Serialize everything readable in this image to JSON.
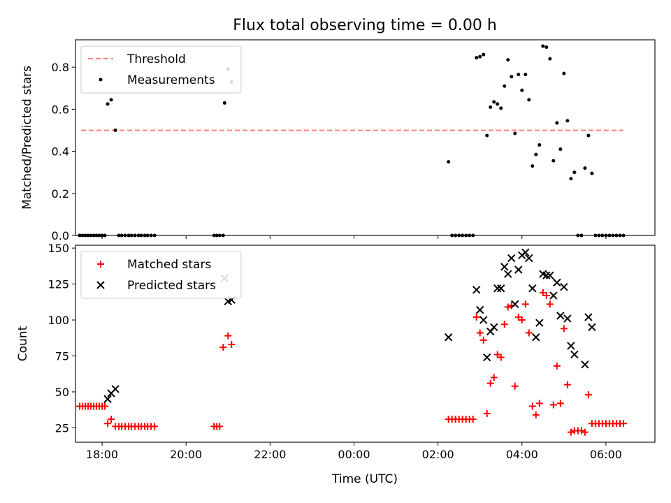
{
  "chart_data": [
    {
      "type": "scatter",
      "title": "Flux total observing time = 0.00 h",
      "xlabel": "",
      "ylabel": "Matched/Predicted stars",
      "x_axis": "time_utc",
      "xlim": [
        "17:22",
        "07:10"
      ],
      "ylim": [
        0,
        0.93
      ],
      "yticks": [
        0.0,
        0.2,
        0.4,
        0.6,
        0.8
      ],
      "ytick_labels": [
        "0.0",
        "0.2",
        "0.4",
        "0.6",
        "0.8"
      ],
      "xticks": [
        "18:00",
        "20:00",
        "22:00",
        "00:00",
        "02:00",
        "04:00",
        "06:00"
      ],
      "show_xtick_labels": false,
      "legend_position": "top-left",
      "grid": false,
      "series": [
        {
          "name": "Threshold",
          "kind": "line",
          "color": "#ff7f7f",
          "x": [
            "17:30",
            "06:25"
          ],
          "y": [
            0.5,
            0.5
          ]
        },
        {
          "name": "Measurements",
          "kind": "scatter",
          "marker": "dot",
          "color": "#000000",
          "points": [
            [
              "17:28",
              0
            ],
            [
              "17:32",
              0
            ],
            [
              "17:36",
              0
            ],
            [
              "17:40",
              0
            ],
            [
              "17:44",
              0
            ],
            [
              "17:48",
              0
            ],
            [
              "17:52",
              0
            ],
            [
              "17:56",
              0
            ],
            [
              "18:00",
              0
            ],
            [
              "18:04",
              0
            ],
            [
              "18:08",
              0.625
            ],
            [
              "18:13",
              0.645
            ],
            [
              "18:19",
              0.5
            ],
            [
              "18:24",
              0
            ],
            [
              "18:28",
              0
            ],
            [
              "18:33",
              0
            ],
            [
              "18:38",
              0
            ],
            [
              "18:42",
              0
            ],
            [
              "18:47",
              0
            ],
            [
              "18:52",
              0
            ],
            [
              "18:56",
              0
            ],
            [
              "19:01",
              0
            ],
            [
              "19:05",
              0
            ],
            [
              "19:10",
              0
            ],
            [
              "19:15",
              0
            ],
            [
              "20:40",
              0
            ],
            [
              "20:44",
              0
            ],
            [
              "20:48",
              0
            ],
            [
              "20:53",
              0
            ],
            [
              "20:55",
              0.63
            ],
            [
              "21:00",
              0.79
            ],
            [
              "21:05",
              0.73
            ],
            [
              "02:15",
              0.35
            ],
            [
              "02:20",
              0
            ],
            [
              "02:25",
              0
            ],
            [
              "02:30",
              0
            ],
            [
              "02:35",
              0
            ],
            [
              "02:40",
              0
            ],
            [
              "02:45",
              0
            ],
            [
              "02:50",
              0
            ],
            [
              "02:55",
              0.845
            ],
            [
              "03:00",
              0.85
            ],
            [
              "03:05",
              0.86
            ],
            [
              "03:10",
              0.475
            ],
            [
              "03:15",
              0.61
            ],
            [
              "03:20",
              0.635
            ],
            [
              "03:25",
              0.625
            ],
            [
              "03:30",
              0.605
            ],
            [
              "03:35",
              0.71
            ],
            [
              "03:40",
              0.835
            ],
            [
              "03:45",
              0.755
            ],
            [
              "03:50",
              0.485
            ],
            [
              "03:55",
              0.765
            ],
            [
              "04:00",
              0.69
            ],
            [
              "04:05",
              0.765
            ],
            [
              "04:10",
              0.645
            ],
            [
              "04:15",
              0.33
            ],
            [
              "04:20",
              0.385
            ],
            [
              "04:25",
              0.43
            ],
            [
              "04:30",
              0.9
            ],
            [
              "04:35",
              0.895
            ],
            [
              "04:40",
              0.84
            ],
            [
              "04:45",
              0.355
            ],
            [
              "04:50",
              0.535
            ],
            [
              "04:55",
              0.41
            ],
            [
              "05:00",
              0.77
            ],
            [
              "05:05",
              0.545
            ],
            [
              "05:10",
              0.27
            ],
            [
              "05:15",
              0.3
            ],
            [
              "05:20",
              0
            ],
            [
              "05:25",
              0
            ],
            [
              "05:30",
              0.32
            ],
            [
              "05:35",
              0.475
            ],
            [
              "05:40",
              0.295
            ],
            [
              "05:45",
              0
            ],
            [
              "05:50",
              0
            ],
            [
              "05:55",
              0
            ],
            [
              "06:00",
              0
            ],
            [
              "06:05",
              0
            ],
            [
              "06:10",
              0
            ],
            [
              "06:15",
              0
            ],
            [
              "06:20",
              0
            ],
            [
              "06:25",
              0
            ]
          ]
        }
      ]
    },
    {
      "type": "scatter",
      "title": "",
      "xlabel": "Time (UTC)",
      "ylabel": "Count",
      "x_axis": "time_utc",
      "xlim": [
        "17:22",
        "07:10"
      ],
      "ylim": [
        15,
        152
      ],
      "yticks": [
        25,
        50,
        75,
        100,
        125,
        150
      ],
      "ytick_labels": [
        "25",
        "50",
        "75",
        "100",
        "125",
        "150"
      ],
      "xticks": [
        "18:00",
        "20:00",
        "22:00",
        "00:00",
        "02:00",
        "04:00",
        "06:00"
      ],
      "xtick_labels": [
        "18:00",
        "20:00",
        "22:00",
        "00:00",
        "02:00",
        "04:00",
        "06:00"
      ],
      "show_xtick_labels": true,
      "legend_position": "top-left",
      "grid": false,
      "series": [
        {
          "name": "Matched stars",
          "kind": "scatter",
          "marker": "plus",
          "color": "#ff0000",
          "points": [
            [
              "17:28",
              40
            ],
            [
              "17:32",
              40
            ],
            [
              "17:36",
              40
            ],
            [
              "17:40",
              40
            ],
            [
              "17:44",
              40
            ],
            [
              "17:48",
              40
            ],
            [
              "17:52",
              40
            ],
            [
              "17:56",
              40
            ],
            [
              "18:00",
              40
            ],
            [
              "18:04",
              40
            ],
            [
              "18:08",
              28
            ],
            [
              "18:13",
              31
            ],
            [
              "18:19",
              26
            ],
            [
              "18:24",
              26
            ],
            [
              "18:28",
              26
            ],
            [
              "18:33",
              26
            ],
            [
              "18:38",
              26
            ],
            [
              "18:42",
              26
            ],
            [
              "18:47",
              26
            ],
            [
              "18:52",
              26
            ],
            [
              "18:56",
              26
            ],
            [
              "19:01",
              26
            ],
            [
              "19:05",
              26
            ],
            [
              "19:10",
              26
            ],
            [
              "19:15",
              26
            ],
            [
              "20:40",
              26
            ],
            [
              "20:44",
              26
            ],
            [
              "20:48",
              26
            ],
            [
              "20:53",
              81
            ],
            [
              "21:00",
              89
            ],
            [
              "21:05",
              83
            ],
            [
              "02:15",
              31
            ],
            [
              "02:20",
              31
            ],
            [
              "02:25",
              31
            ],
            [
              "02:30",
              31
            ],
            [
              "02:35",
              31
            ],
            [
              "02:40",
              31
            ],
            [
              "02:45",
              31
            ],
            [
              "02:50",
              31
            ],
            [
              "02:55",
              102
            ],
            [
              "03:00",
              91
            ],
            [
              "03:05",
              86
            ],
            [
              "03:10",
              35
            ],
            [
              "03:15",
              56
            ],
            [
              "03:20",
              60
            ],
            [
              "03:25",
              76
            ],
            [
              "03:30",
              74
            ],
            [
              "03:35",
              97
            ],
            [
              "03:40",
              109
            ],
            [
              "03:45",
              110
            ],
            [
              "03:50",
              54
            ],
            [
              "03:55",
              102
            ],
            [
              "04:00",
              100
            ],
            [
              "04:05",
              111
            ],
            [
              "04:10",
              91
            ],
            [
              "04:15",
              40
            ],
            [
              "04:20",
              34
            ],
            [
              "04:25",
              42
            ],
            [
              "04:30",
              119
            ],
            [
              "04:35",
              117
            ],
            [
              "04:40",
              111
            ],
            [
              "04:45",
              41
            ],
            [
              "04:50",
              68
            ],
            [
              "04:55",
              42
            ],
            [
              "05:00",
              94
            ],
            [
              "05:05",
              55
            ],
            [
              "05:10",
              22
            ],
            [
              "05:15",
              23
            ],
            [
              "05:20",
              23
            ],
            [
              "05:25",
              23
            ],
            [
              "05:30",
              22
            ],
            [
              "05:35",
              48
            ],
            [
              "05:40",
              28
            ],
            [
              "05:45",
              28
            ],
            [
              "05:50",
              28
            ],
            [
              "05:55",
              28
            ],
            [
              "06:00",
              28
            ],
            [
              "06:05",
              28
            ],
            [
              "06:10",
              28
            ],
            [
              "06:15",
              28
            ],
            [
              "06:20",
              28
            ],
            [
              "06:25",
              28
            ]
          ]
        },
        {
          "name": "Predicted stars",
          "kind": "scatter",
          "marker": "x",
          "color": "#000000",
          "points": [
            [
              "18:08",
              45
            ],
            [
              "18:13",
              49
            ],
            [
              "18:19",
              52
            ],
            [
              "20:55",
              129
            ],
            [
              "21:00",
              113
            ],
            [
              "21:05",
              114
            ],
            [
              "02:15",
              88
            ],
            [
              "02:55",
              121
            ],
            [
              "03:00",
              107
            ],
            [
              "03:05",
              100
            ],
            [
              "03:10",
              74
            ],
            [
              "03:15",
              92
            ],
            [
              "03:20",
              95
            ],
            [
              "03:25",
              122
            ],
            [
              "03:30",
              122
            ],
            [
              "03:35",
              137
            ],
            [
              "03:40",
              132
            ],
            [
              "03:45",
              143
            ],
            [
              "03:50",
              111
            ],
            [
              "03:55",
              135
            ],
            [
              "04:00",
              145
            ],
            [
              "04:05",
              147
            ],
            [
              "04:10",
              143
            ],
            [
              "04:15",
              122
            ],
            [
              "04:20",
              88
            ],
            [
              "04:25",
              98
            ],
            [
              "04:30",
              132
            ],
            [
              "04:35",
              131
            ],
            [
              "04:40",
              131
            ],
            [
              "04:45",
              117
            ],
            [
              "04:50",
              126
            ],
            [
              "04:55",
              103
            ],
            [
              "05:00",
              123
            ],
            [
              "05:05",
              101
            ],
            [
              "05:10",
              82
            ],
            [
              "05:15",
              76
            ],
            [
              "05:30",
              69
            ],
            [
              "05:35",
              102
            ],
            [
              "05:40",
              95
            ]
          ]
        }
      ]
    }
  ]
}
